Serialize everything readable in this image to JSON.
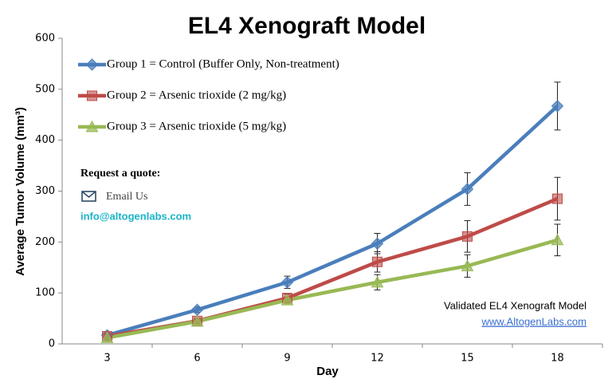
{
  "chart_data": {
    "type": "line",
    "title": "EL4 Xenograft Model",
    "x_label": "Day",
    "y_label": "Average Tumor Volume (mm³)",
    "categories": [
      "3",
      "6",
      "9",
      "12",
      "15",
      "18"
    ],
    "ylim": [
      0,
      600
    ],
    "yticks": [
      0,
      100,
      200,
      300,
      400,
      500,
      600
    ],
    "grid": false,
    "legend": "upper left",
    "series": [
      {
        "name": "Group 1 = Control (Buffer Only, Non-treatment)",
        "color": "#4a7ebb",
        "marker": "diamond",
        "values": [
          17,
          67,
          121,
          197,
          304,
          467
        ],
        "errors": [
          3,
          5,
          12,
          20,
          32,
          47
        ]
      },
      {
        "name": "Group 2 = Arsenic trioxide (2 mg/kg)",
        "color": "#be4b48",
        "marker": "square",
        "values": [
          15,
          45,
          90,
          161,
          211,
          285
        ],
        "errors": [
          3,
          5,
          8,
          20,
          31,
          42
        ]
      },
      {
        "name": "Group 3 = Arsenic trioxide (5 mg/kg)",
        "color": "#98b954",
        "marker": "triangle",
        "values": [
          12,
          44,
          86,
          121,
          153,
          204
        ],
        "errors": [
          3,
          4,
          6,
          15,
          22,
          31
        ]
      }
    ],
    "annotations": [
      "Request a quote:",
      "Email Us",
      "info@altogenlabs.com",
      "Validated EL4 Xenograft Model",
      "www.AltogenLabs.com"
    ]
  }
}
